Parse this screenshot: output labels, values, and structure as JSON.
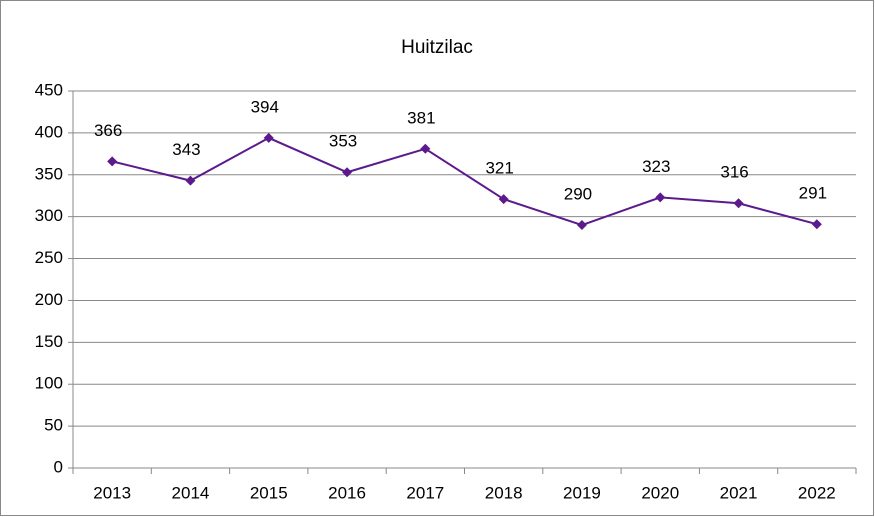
{
  "chart_data": {
    "type": "line",
    "title": "Huitzilac",
    "categories": [
      "2013",
      "2014",
      "2015",
      "2016",
      "2017",
      "2018",
      "2019",
      "2020",
      "2021",
      "2022"
    ],
    "values": [
      366,
      343,
      394,
      353,
      381,
      321,
      290,
      323,
      316,
      291
    ],
    "color": "#5c1a8c",
    "ylim": [
      0,
      450
    ],
    "yticks": [
      0,
      50,
      100,
      150,
      200,
      250,
      300,
      350,
      400,
      450
    ],
    "grid": true
  }
}
